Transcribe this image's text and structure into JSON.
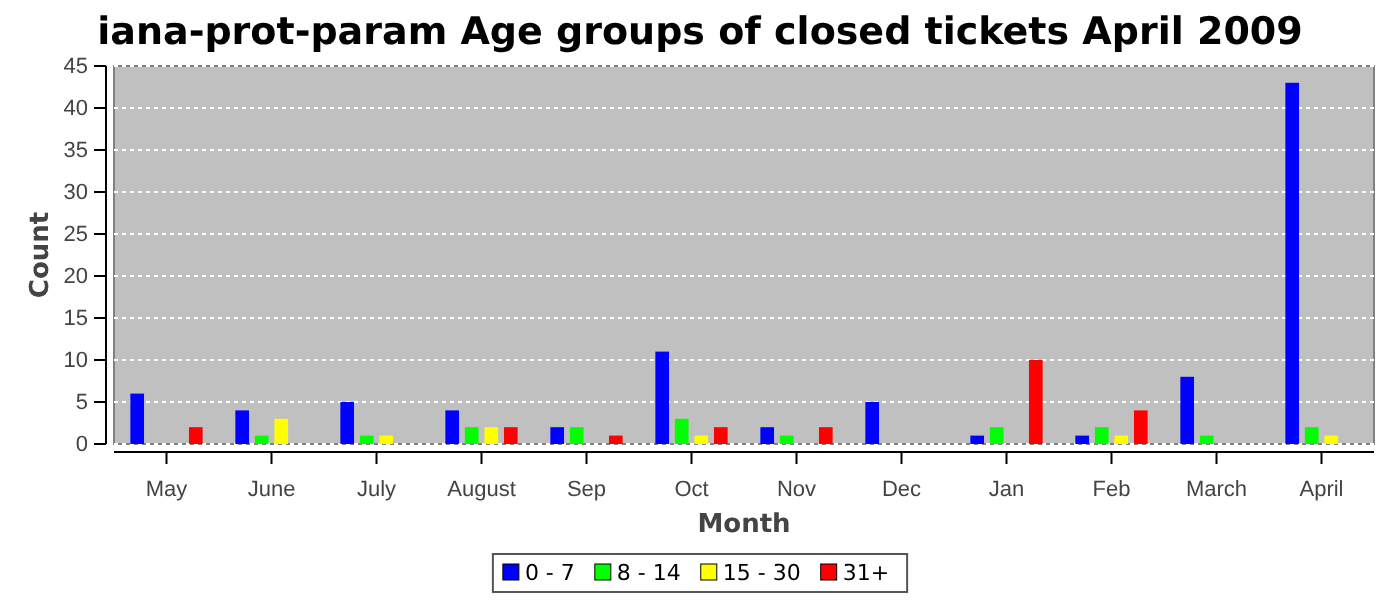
{
  "chart_data": {
    "type": "bar",
    "title": "iana-prot-param Age groups of closed tickets April 2009",
    "xlabel": "Month",
    "ylabel": "Count",
    "categories": [
      "May",
      "June",
      "July",
      "August",
      "Sep",
      "Oct",
      "Nov",
      "Dec",
      "Jan",
      "Feb",
      "March",
      "April"
    ],
    "series": [
      {
        "name": "0 - 7",
        "color": "#0000ff",
        "values": [
          6,
          4,
          5,
          4,
          2,
          11,
          2,
          5,
          1,
          1,
          8,
          43
        ]
      },
      {
        "name": "8 - 14",
        "color": "#00ff00",
        "values": [
          0,
          1,
          1,
          2,
          2,
          3,
          1,
          0,
          2,
          2,
          1,
          2
        ]
      },
      {
        "name": "15 - 30",
        "color": "#ffff00",
        "values": [
          0,
          3,
          1,
          2,
          0,
          1,
          0,
          0,
          0,
          1,
          0,
          1
        ]
      },
      {
        "name": "31+",
        "color": "#ff0000",
        "values": [
          2,
          0,
          0,
          2,
          1,
          2,
          2,
          0,
          10,
          4,
          0,
          0
        ]
      }
    ],
    "ylim": [
      0,
      45
    ],
    "yticks": [
      0,
      5,
      10,
      15,
      20,
      25,
      30,
      35,
      40,
      45
    ],
    "grid": "y",
    "legend": "bottom"
  }
}
